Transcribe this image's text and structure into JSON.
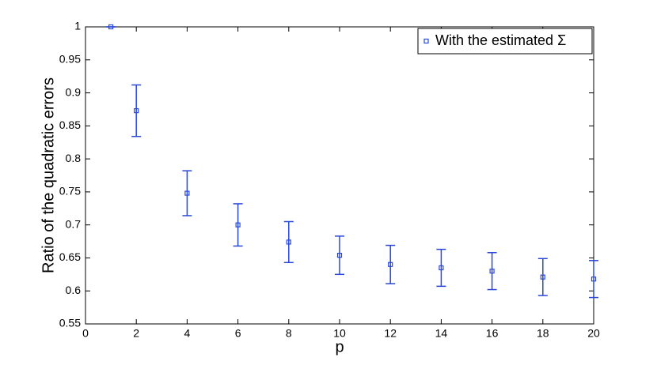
{
  "chart_data": {
    "type": "errorbar",
    "xlabel": "p",
    "ylabel": "Ratio of the quadratic errors",
    "x": [
      1,
      2,
      4,
      6,
      8,
      10,
      12,
      14,
      16,
      18,
      20
    ],
    "series": [
      {
        "name": "With the estimated Σ",
        "color": "#2a48d8",
        "values": [
          1,
          0.873,
          0.748,
          0.7,
          0.674,
          0.654,
          0.64,
          0.635,
          0.63,
          0.621,
          0.618
        ],
        "errors": [
          0,
          0.039,
          0.034,
          0.032,
          0.031,
          0.029,
          0.029,
          0.028,
          0.028,
          0.028,
          0.028
        ]
      }
    ],
    "xlim": [
      0,
      20
    ],
    "xticks": [
      0,
      2,
      4,
      6,
      8,
      10,
      12,
      14,
      16,
      18,
      20
    ],
    "ylim": [
      0.55,
      1
    ],
    "yticks": [
      0.55,
      0.6,
      0.65,
      0.7,
      0.75,
      0.8,
      0.85,
      0.9,
      0.95,
      1
    ],
    "legend": "top-right",
    "grid": false
  }
}
